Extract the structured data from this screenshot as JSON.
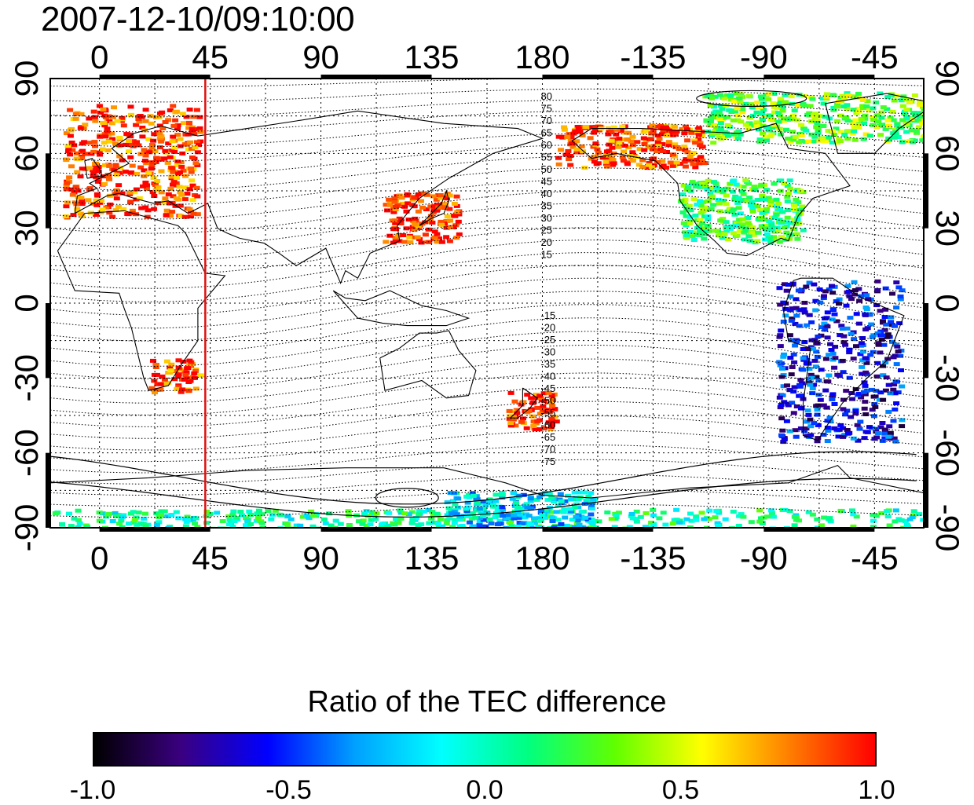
{
  "title": "2007-12-10/09:10:00",
  "map": {
    "lon_tick_labels_top": [
      "0",
      "45",
      "90",
      "135",
      "180",
      "-135",
      "-90",
      "-45"
    ],
    "lon_tick_labels_bottom": [
      "0",
      "45",
      "90",
      "135",
      "180",
      "-135",
      "-90",
      "-45"
    ],
    "lat_tick_labels_left": [
      "90",
      "60",
      "30",
      "0",
      "-30",
      "-60",
      "-90"
    ],
    "lat_tick_labels_right": [
      "90",
      "60",
      "30",
      "0",
      "-30",
      "-60",
      "-90"
    ],
    "lon_ticks": [
      0,
      45,
      90,
      135,
      180,
      225,
      270,
      315
    ],
    "lat_ticks": [
      90,
      60,
      30,
      0,
      -30,
      -60,
      -90
    ],
    "lon_range": [
      -20,
      335
    ],
    "lat_range": [
      -90,
      90
    ],
    "grid": true,
    "marker_line_longitude": 43,
    "marker_line_color": "#e01010",
    "contour_labels_north": [
      "80",
      "75",
      "70",
      "65",
      "60",
      "55",
      "50",
      "45",
      "40",
      "35",
      "30",
      "25",
      "20",
      "15"
    ],
    "contour_labels_south": [
      "-15",
      "-20",
      "-25",
      "-30",
      "-35",
      "-40",
      "-45",
      "-50",
      "-55",
      "-60",
      "-65",
      "-70",
      "-75"
    ],
    "contour_label_longitude": 180
  },
  "colorbar": {
    "title": "Ratio of the TEC difference",
    "min": -1.0,
    "max": 1.0,
    "tick_labels": [
      "-1.0",
      "-0.5",
      "0.0",
      "0.5",
      "1.0"
    ],
    "tick_values": [
      -1.0,
      -0.5,
      0.0,
      0.5,
      1.0
    ],
    "colors": [
      "#000000",
      "#3a0080",
      "#0000ff",
      "#00a0ff",
      "#00ffff",
      "#00ff80",
      "#60ff00",
      "#ffff00",
      "#ff8000",
      "#ff0000"
    ]
  },
  "chart_data": {
    "type": "heatmap",
    "title": "2007-12-10/09:10:00",
    "xlabel": "",
    "ylabel": "",
    "x_ticks": [
      "0",
      "45",
      "90",
      "135",
      "180",
      "-135",
      "-90",
      "-45"
    ],
    "y_ticks": [
      "90",
      "60",
      "30",
      "0",
      "-30",
      "-60",
      "-90"
    ],
    "colorbar_label": "Ratio of the TEC difference",
    "value_range": [
      -1.0,
      1.0
    ],
    "regions": [
      {
        "lon": [
          -15,
          40
        ],
        "lat": [
          35,
          80
        ],
        "mean_ratio": 0.9
      },
      {
        "lon": [
          115,
          145
        ],
        "lat": [
          25,
          45
        ],
        "mean_ratio": 0.95
      },
      {
        "lon": [
          165,
          185
        ],
        "lat": [
          -50,
          -35
        ],
        "mean_ratio": 0.95
      },
      {
        "lon": [
          20,
          40
        ],
        "lat": [
          -35,
          -22
        ],
        "mean_ratio": 0.9
      },
      {
        "lon": [
          185,
          245
        ],
        "lat": [
          55,
          72
        ],
        "mean_ratio": 0.9
      },
      {
        "lon": [
          235,
          285
        ],
        "lat": [
          25,
          50
        ],
        "mean_ratio": 0.2
      },
      {
        "lon": [
          275,
          325
        ],
        "lat": [
          -55,
          10
        ],
        "mean_ratio": -0.6
      },
      {
        "lon": [
          245,
          335
        ],
        "lat": [
          65,
          85
        ],
        "mean_ratio": 0.3
      },
      {
        "lon": [
          -20,
          335
        ],
        "lat": [
          -90,
          -82
        ],
        "mean_ratio": 0.05
      },
      {
        "lon": [
          140,
          200
        ],
        "lat": [
          -90,
          -75
        ],
        "mean_ratio": -0.2
      }
    ]
  }
}
